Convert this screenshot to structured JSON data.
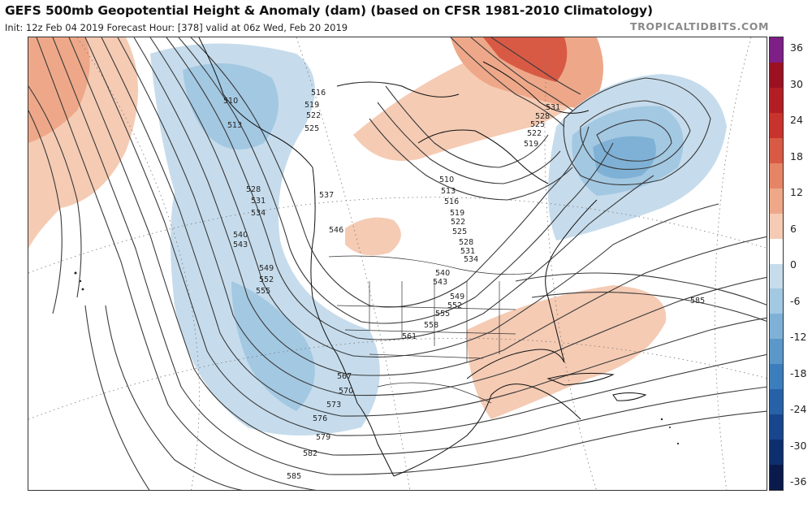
{
  "header": {
    "title": "GEFS 500mb Geopotential Height & Anomaly (dam) (based on CFSR 1981-2010 Climatology)",
    "subtitle": "Init: 12z Feb 04 2019   Forecast Hour: [378]   valid at 06z Wed, Feb 20 2019",
    "brand": "TROPICALTIDBITS.COM"
  },
  "colorbar": {
    "labels": [
      "36",
      "30",
      "24",
      "18",
      "12",
      "6",
      "0",
      "-6",
      "-12",
      "-18",
      "-24",
      "-30",
      "-36"
    ],
    "colors": [
      "#7d1f86",
      "#9b1121",
      "#b21e24",
      "#c8332d",
      "#d85a45",
      "#e58566",
      "#eea889",
      "#f5cbb4",
      "#ffffff",
      "#c6dcec",
      "#a3c8e2",
      "#7fb1d6",
      "#5b98c9",
      "#3c7ebb",
      "#2761a7",
      "#17468d",
      "#0d2f6d",
      "#0a1a4a"
    ]
  },
  "contour_labels": [
    {
      "t": "510"
    },
    {
      "t": "513"
    },
    {
      "t": "516"
    },
    {
      "t": "519"
    },
    {
      "t": "522"
    },
    {
      "t": "525"
    },
    {
      "t": "528"
    },
    {
      "t": "531"
    },
    {
      "t": "534"
    },
    {
      "t": "537"
    },
    {
      "t": "540"
    },
    {
      "t": "543"
    },
    {
      "t": "546"
    },
    {
      "t": "549"
    },
    {
      "t": "552"
    },
    {
      "t": "555"
    },
    {
      "t": "558"
    },
    {
      "t": "561"
    },
    {
      "t": "567"
    },
    {
      "t": "570"
    },
    {
      "t": "573"
    },
    {
      "t": "576"
    },
    {
      "t": "579"
    },
    {
      "t": "582"
    },
    {
      "t": "585"
    },
    {
      "t": "585"
    },
    {
      "t": "531"
    },
    {
      "t": "528"
    },
    {
      "t": "525"
    },
    {
      "t": "522"
    },
    {
      "t": "519"
    },
    {
      "t": "510"
    },
    {
      "t": "513"
    },
    {
      "t": "516"
    },
    {
      "t": "519"
    },
    {
      "t": "522"
    },
    {
      "t": "525"
    },
    {
      "t": "528"
    },
    {
      "t": "531"
    },
    {
      "t": "534"
    },
    {
      "t": "540"
    },
    {
      "t": "543"
    },
    {
      "t": "549"
    },
    {
      "t": "552"
    },
    {
      "t": "555"
    }
  ]
}
